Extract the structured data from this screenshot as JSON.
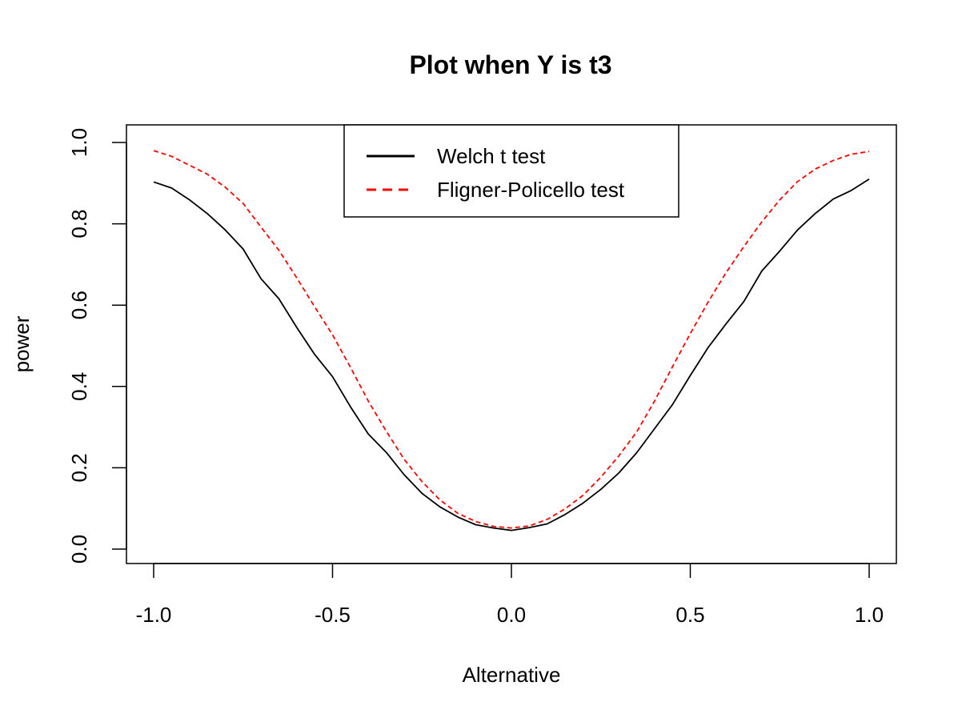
{
  "chart_data": {
    "type": "line",
    "title": "Plot when Y is t3",
    "xlabel": "Alternative",
    "ylabel": "power",
    "xlim": [
      -1.0,
      1.0
    ],
    "ylim": [
      0.0,
      1.0
    ],
    "x_ticks": [
      "-1.0",
      "-0.5",
      "0.0",
      "0.5",
      "1.0"
    ],
    "y_ticks": [
      "0.0",
      "0.2",
      "0.4",
      "0.6",
      "0.8",
      "1.0"
    ],
    "grid": false,
    "legend_position": "top",
    "x": [
      -1.0,
      -0.95,
      -0.9,
      -0.85,
      -0.8,
      -0.75,
      -0.7,
      -0.65,
      -0.6,
      -0.55,
      -0.5,
      -0.45,
      -0.4,
      -0.35,
      -0.3,
      -0.25,
      -0.2,
      -0.15,
      -0.1,
      -0.05,
      0.0,
      0.05,
      0.1,
      0.15,
      0.2,
      0.25,
      0.3,
      0.35,
      0.4,
      0.45,
      0.5,
      0.55,
      0.6,
      0.65,
      0.7,
      0.75,
      0.8,
      0.85,
      0.9,
      0.95,
      1.0
    ],
    "series": [
      {
        "name": "Welch t test",
        "color": "#000000",
        "dash": "solid",
        "values": [
          0.903,
          0.888,
          0.859,
          0.825,
          0.785,
          0.738,
          0.665,
          0.616,
          0.545,
          0.479,
          0.424,
          0.35,
          0.283,
          0.238,
          0.183,
          0.137,
          0.104,
          0.079,
          0.06,
          0.052,
          0.046,
          0.053,
          0.062,
          0.085,
          0.113,
          0.147,
          0.187,
          0.237,
          0.296,
          0.355,
          0.427,
          0.496,
          0.554,
          0.609,
          0.684,
          0.733,
          0.785,
          0.826,
          0.861,
          0.882,
          0.91
        ]
      },
      {
        "name": "Fligner-Policello test",
        "color": "#ff0000",
        "dash": "dashed",
        "values": [
          0.98,
          0.966,
          0.944,
          0.922,
          0.89,
          0.85,
          0.792,
          0.735,
          0.667,
          0.596,
          0.527,
          0.447,
          0.364,
          0.29,
          0.221,
          0.166,
          0.121,
          0.088,
          0.068,
          0.056,
          0.052,
          0.057,
          0.073,
          0.099,
          0.132,
          0.177,
          0.229,
          0.288,
          0.364,
          0.448,
          0.53,
          0.608,
          0.68,
          0.744,
          0.805,
          0.859,
          0.904,
          0.935,
          0.956,
          0.971,
          0.978
        ]
      }
    ]
  }
}
